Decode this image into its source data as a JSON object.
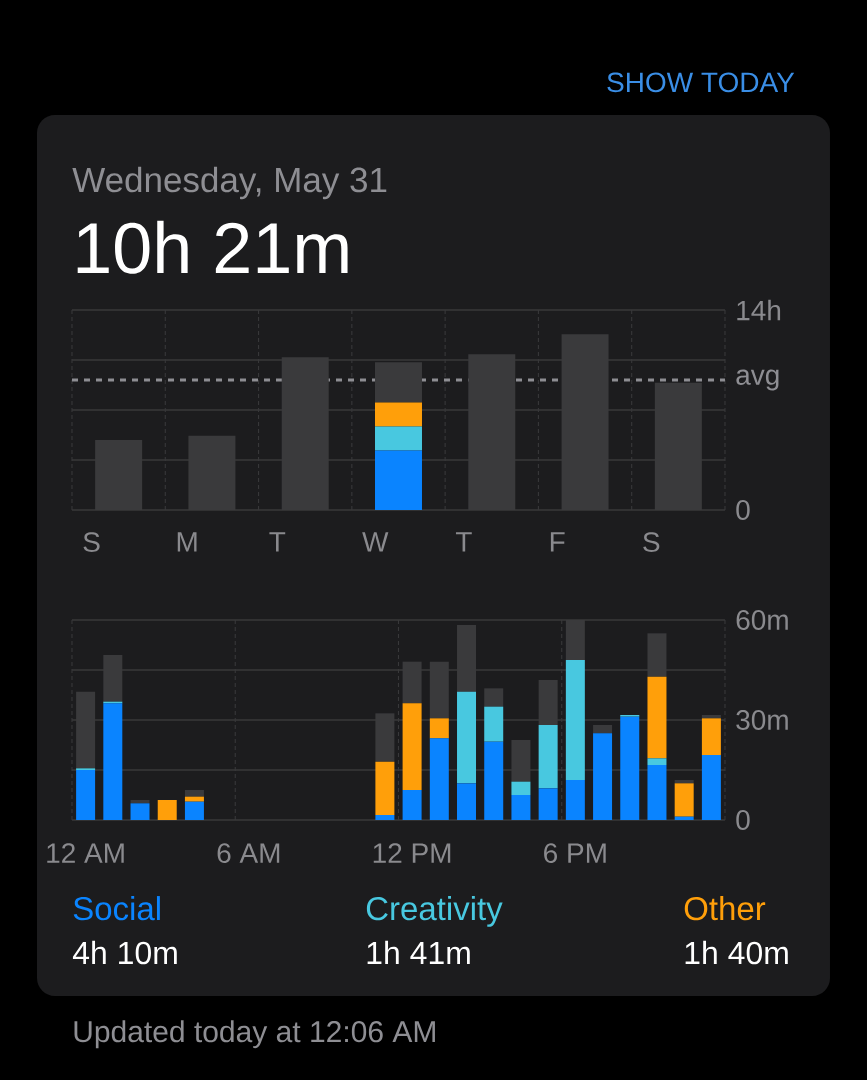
{
  "chart_data": [
    {
      "type": "bar",
      "title": "Wednesday, May 31",
      "subtitle": "10h 21m",
      "categories": [
        "S",
        "M",
        "T",
        "W",
        "T",
        "F",
        "S"
      ],
      "stacked": true,
      "series": [
        {
          "color": "#0a84ff",
          "values": [
            null,
            null,
            null,
            4.17,
            null,
            null,
            null
          ]
        },
        {
          "color": "#48c8e0",
          "values": [
            null,
            null,
            null,
            1.68,
            null,
            null,
            null
          ]
        },
        {
          "color": "#ff9f0a",
          "values": [
            null,
            null,
            null,
            1.67,
            null,
            null,
            null
          ]
        },
        {
          "color": "#3a3a3c",
          "values": [
            4.9,
            5.2,
            10.7,
            2.83,
            10.9,
            12.3,
            8.9
          ]
        }
      ],
      "ylim": [
        0,
        14
      ],
      "yticks": [
        0,
        {
          "value": 3.5,
          "label": null
        },
        {
          "value": 7,
          "label": null
        },
        {
          "value": 10.5,
          "label": null
        },
        {
          "value": 14,
          "label": "14h"
        }
      ],
      "grid": true,
      "ref_lines": [
        {
          "axis": "y",
          "value": 9.1,
          "label": "avg",
          "color": "#8e8e93",
          "line_style": "dashed"
        }
      ],
      "annotations": [
        "SHOW TODAY"
      ]
    },
    {
      "type": "bar",
      "categories": [
        "12 AM",
        null,
        null,
        null,
        null,
        null,
        "6 AM",
        null,
        null,
        null,
        null,
        null,
        "12 PM",
        null,
        null,
        null,
        null,
        null,
        "6 PM",
        null,
        null,
        null,
        null,
        null
      ],
      "stacked": true,
      "series": [
        {
          "name": "Social",
          "color": "#0a84ff",
          "values": [
            15,
            35,
            5,
            null,
            5.5,
            null,
            null,
            null,
            null,
            null,
            null,
            1.5,
            9,
            24.5,
            11,
            23.5,
            7.5,
            9.5,
            12,
            26,
            31,
            16.5,
            1,
            19.5
          ]
        },
        {
          "name": "Creativity",
          "color": "#48c8e0",
          "values": [
            0.5,
            0.5,
            null,
            null,
            null,
            null,
            null,
            null,
            null,
            null,
            null,
            null,
            null,
            null,
            27.5,
            10.5,
            4,
            19,
            36,
            null,
            0.5,
            2,
            null,
            null
          ]
        },
        {
          "name": "Other",
          "color": "#ff9f0a",
          "values": [
            null,
            null,
            null,
            6,
            1.5,
            null,
            null,
            null,
            null,
            null,
            null,
            16,
            26,
            6,
            null,
            null,
            null,
            null,
            null,
            null,
            null,
            24.5,
            10,
            11
          ]
        },
        {
          "color": "#3a3a3c",
          "values": [
            23,
            14,
            1,
            null,
            2,
            null,
            null,
            null,
            null,
            null,
            null,
            14.5,
            12.5,
            17,
            20,
            5.5,
            12.5,
            13.5,
            12,
            2.5,
            null,
            13,
            1,
            1
          ]
        }
      ],
      "ylim": [
        0,
        60
      ],
      "yticks": [
        0,
        {
          "value": 15,
          "label": null
        },
        {
          "value": 30,
          "label": "30m"
        },
        {
          "value": 45,
          "label": null
        },
        {
          "value": 60,
          "label": "60m"
        }
      ],
      "grid": true,
      "annotations": [
        "4h 10m",
        "1h 41m",
        "1h 40m",
        "Updated today at 12:06 AM"
      ]
    }
  ]
}
